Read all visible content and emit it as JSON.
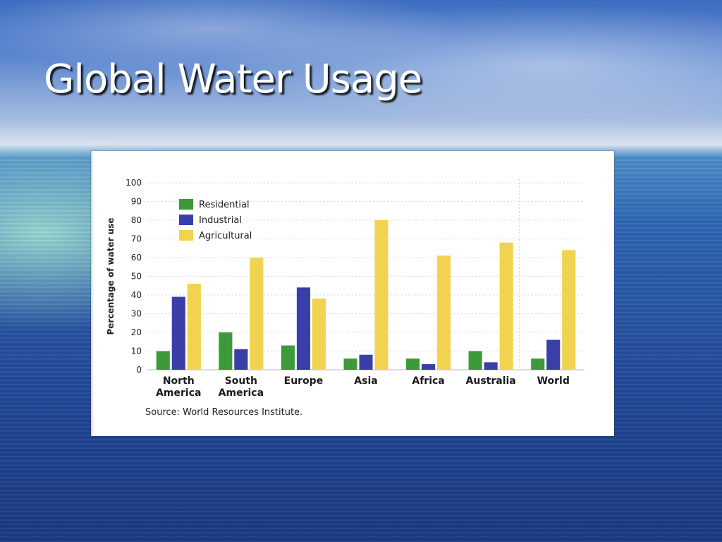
{
  "slide": {
    "title": "Global Water Usage"
  },
  "chart_data": {
    "type": "bar",
    "title": "",
    "xlabel": "",
    "ylabel": "Percentage of water use",
    "ylim": [
      0,
      100
    ],
    "yticks": [
      0,
      10,
      20,
      30,
      40,
      50,
      60,
      70,
      80,
      90,
      100
    ],
    "categories": [
      [
        "North",
        "America"
      ],
      [
        "South",
        "America"
      ],
      [
        "Europe"
      ],
      [
        "Asia"
      ],
      [
        "Africa"
      ],
      [
        "Australia"
      ],
      [
        "World"
      ]
    ],
    "series": [
      {
        "name": "Residential",
        "color": "#3d9a3a",
        "values": [
          10,
          20,
          13,
          6,
          6,
          10,
          6
        ]
      },
      {
        "name": "Industrial",
        "color": "#3a3fa8",
        "values": [
          39,
          11,
          44,
          8,
          3,
          4,
          16
        ]
      },
      {
        "name": "Agricultural",
        "color": "#f2d34f",
        "values": [
          46,
          60,
          38,
          80,
          61,
          68,
          64
        ]
      }
    ],
    "legend": "top-left",
    "grid": true,
    "source": "Source: World Resources Institute."
  }
}
